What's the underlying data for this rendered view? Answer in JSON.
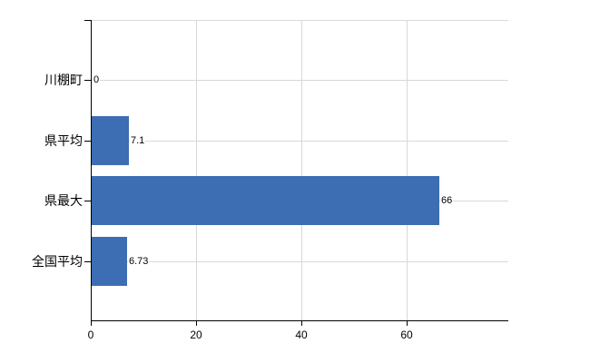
{
  "chart_data": {
    "type": "bar",
    "orientation": "horizontal",
    "title": "",
    "xlabel": "",
    "ylabel": "",
    "categories": [
      "川棚町",
      "県平均",
      "県最大",
      "全国平均"
    ],
    "values": [
      0,
      7.1,
      66,
      6.73
    ],
    "value_labels": [
      "0",
      "7.1",
      "66",
      "6.73"
    ],
    "x_ticks": [
      0,
      20,
      40,
      60
    ],
    "x_tick_labels": [
      "0",
      "20",
      "40",
      "60"
    ],
    "xlim": [
      0,
      79.3
    ],
    "grid": true,
    "legend": false,
    "colors": {
      "bar": "#3d6db3",
      "axis": "#000000",
      "gridline": "#d8d8d8",
      "text": "#000000",
      "background": "#ffffff"
    }
  }
}
